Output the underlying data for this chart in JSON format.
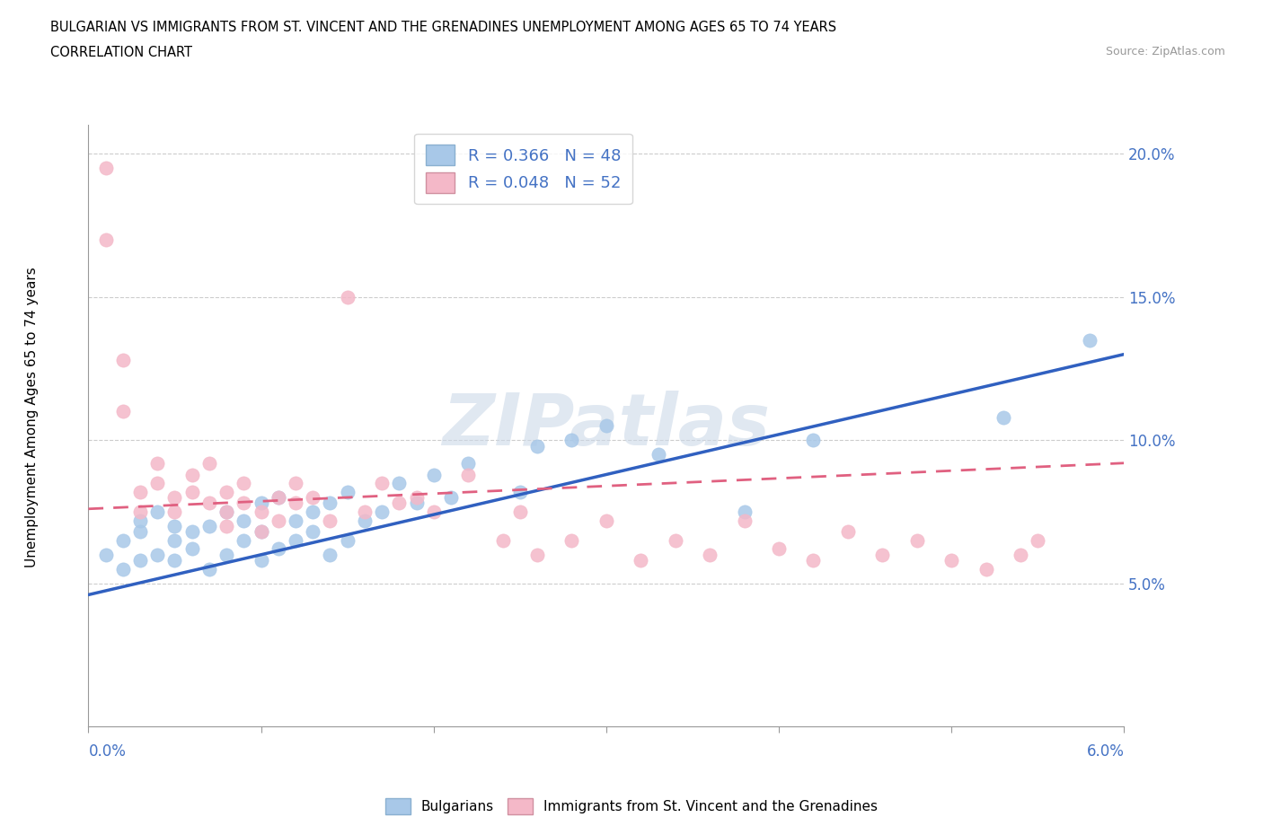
{
  "title_line1": "BULGARIAN VS IMMIGRANTS FROM ST. VINCENT AND THE GRENADINES UNEMPLOYMENT AMONG AGES 65 TO 74 YEARS",
  "title_line2": "CORRELATION CHART",
  "source": "Source: ZipAtlas.com",
  "ylabel": "Unemployment Among Ages 65 to 74 years",
  "legend_label1": "Bulgarians",
  "legend_label2": "Immigrants from St. Vincent and the Grenadines",
  "R1": 0.366,
  "N1": 48,
  "R2": 0.048,
  "N2": 52,
  "blue_color": "#a8c8e8",
  "pink_color": "#f4b8c8",
  "blue_line_color": "#3060c0",
  "pink_line_color": "#e06080",
  "xlim": [
    0.0,
    0.06
  ],
  "ylim": [
    0.0,
    0.21
  ],
  "yticks": [
    0.05,
    0.1,
    0.15,
    0.2
  ],
  "ytick_labels": [
    "5.0%",
    "10.0%",
    "15.0%",
    "20.0%"
  ],
  "blue_scatter_x": [
    0.001,
    0.002,
    0.002,
    0.003,
    0.003,
    0.003,
    0.004,
    0.004,
    0.005,
    0.005,
    0.005,
    0.006,
    0.006,
    0.007,
    0.007,
    0.008,
    0.008,
    0.009,
    0.009,
    0.01,
    0.01,
    0.01,
    0.011,
    0.011,
    0.012,
    0.012,
    0.013,
    0.013,
    0.014,
    0.014,
    0.015,
    0.015,
    0.016,
    0.017,
    0.018,
    0.019,
    0.02,
    0.021,
    0.022,
    0.025,
    0.026,
    0.028,
    0.03,
    0.033,
    0.038,
    0.042,
    0.053,
    0.058
  ],
  "blue_scatter_y": [
    0.06,
    0.065,
    0.055,
    0.068,
    0.058,
    0.072,
    0.06,
    0.075,
    0.058,
    0.065,
    0.07,
    0.062,
    0.068,
    0.055,
    0.07,
    0.06,
    0.075,
    0.065,
    0.072,
    0.058,
    0.068,
    0.078,
    0.062,
    0.08,
    0.065,
    0.072,
    0.068,
    0.075,
    0.06,
    0.078,
    0.065,
    0.082,
    0.072,
    0.075,
    0.085,
    0.078,
    0.088,
    0.08,
    0.092,
    0.082,
    0.098,
    0.1,
    0.105,
    0.095,
    0.075,
    0.1,
    0.108,
    0.135
  ],
  "pink_scatter_x": [
    0.001,
    0.001,
    0.002,
    0.002,
    0.003,
    0.003,
    0.004,
    0.004,
    0.005,
    0.005,
    0.006,
    0.006,
    0.007,
    0.007,
    0.008,
    0.008,
    0.008,
    0.009,
    0.009,
    0.01,
    0.01,
    0.011,
    0.011,
    0.012,
    0.012,
    0.013,
    0.014,
    0.015,
    0.016,
    0.017,
    0.018,
    0.019,
    0.02,
    0.022,
    0.024,
    0.025,
    0.026,
    0.028,
    0.03,
    0.032,
    0.034,
    0.036,
    0.038,
    0.04,
    0.042,
    0.044,
    0.046,
    0.048,
    0.05,
    0.052,
    0.054,
    0.055
  ],
  "pink_scatter_y": [
    0.195,
    0.17,
    0.128,
    0.11,
    0.082,
    0.075,
    0.092,
    0.085,
    0.08,
    0.075,
    0.088,
    0.082,
    0.078,
    0.092,
    0.075,
    0.082,
    0.07,
    0.078,
    0.085,
    0.075,
    0.068,
    0.08,
    0.072,
    0.078,
    0.085,
    0.08,
    0.072,
    0.15,
    0.075,
    0.085,
    0.078,
    0.08,
    0.075,
    0.088,
    0.065,
    0.075,
    0.06,
    0.065,
    0.072,
    0.058,
    0.065,
    0.06,
    0.072,
    0.062,
    0.058,
    0.068,
    0.06,
    0.065,
    0.058,
    0.055,
    0.06,
    0.065
  ],
  "blue_trend_x": [
    0.0,
    0.06
  ],
  "blue_trend_y": [
    0.046,
    0.13
  ],
  "pink_trend_x": [
    0.0,
    0.06
  ],
  "pink_trend_y": [
    0.076,
    0.092
  ]
}
